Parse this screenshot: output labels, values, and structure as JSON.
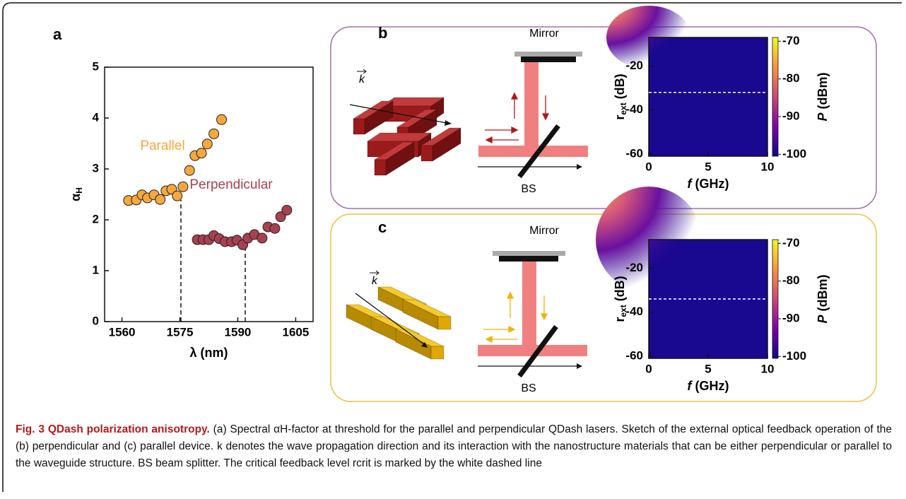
{
  "chart_data": [
    {
      "type": "scatter",
      "panel_label": "a",
      "xlabel": "λ (nm)",
      "ylabel": {
        "symbol": "α",
        "subscript": "H"
      },
      "xlim": [
        1555.5,
        1609.5
      ],
      "xticks": [
        1560,
        1575,
        1590,
        1605
      ],
      "ylim": [
        0,
        5
      ],
      "yticks": [
        0,
        1,
        2,
        3,
        4,
        5
      ],
      "series": [
        {
          "name": "Parallel",
          "color": "#f5a83c",
          "x": [
            1561.7,
            1563.7,
            1565.2,
            1566.6,
            1568.3,
            1569.9,
            1571.4,
            1572.9,
            1574.3,
            1575.8,
            1577.5,
            1578.9,
            1580.6,
            1582.1,
            1583.8,
            1585.8
          ],
          "values": [
            2.38,
            2.39,
            2.49,
            2.43,
            2.49,
            2.4,
            2.57,
            2.6,
            2.47,
            2.65,
            2.97,
            3.26,
            3.31,
            3.49,
            3.69,
            3.97
          ]
        },
        {
          "name": "Perpendicular",
          "color": "#a8414f",
          "x": [
            1579.5,
            1581.0,
            1582.5,
            1583.8,
            1585.2,
            1586.7,
            1588.4,
            1589.8,
            1591.3,
            1592.6,
            1594.3,
            1596.3,
            1597.8,
            1599.6,
            1601.1,
            1602.7
          ],
          "values": [
            1.61,
            1.61,
            1.61,
            1.69,
            1.63,
            1.57,
            1.57,
            1.6,
            1.51,
            1.64,
            1.71,
            1.64,
            1.86,
            1.83,
            2.06,
            2.19
          ]
        }
      ]
    },
    {
      "type": "heatmap",
      "panel_label": "b",
      "xlabel": {
        "symbol": "f",
        "unit": " (GHz)"
      },
      "ylabel": {
        "symbol": "r",
        "subscript": "ext",
        "unit": " (dB)"
      },
      "xlim": [
        0,
        10
      ],
      "xticks": [
        0,
        5,
        10
      ],
      "ylim": [
        -61,
        -7
      ],
      "yticks": [
        -20,
        -40,
        -60
      ],
      "colorbar": {
        "label": {
          "symbol": "P",
          "unit": " (dBm)"
        },
        "lim": [
          -100.5,
          -69
        ],
        "ticks": [
          -70,
          -80,
          -90,
          -100
        ]
      },
      "critical_level": -32
    },
    {
      "type": "heatmap",
      "panel_label": "c",
      "xlabel": {
        "symbol": "f",
        "unit": " (GHz)"
      },
      "ylabel": {
        "symbol": "r",
        "subscript": "ext",
        "unit": " (dB)"
      },
      "xlim": [
        0,
        10
      ],
      "xticks": [
        0,
        5,
        10
      ],
      "ylim": [
        -61,
        -7
      ],
      "yticks": [
        -20,
        -40,
        -60
      ],
      "colorbar": {
        "label": {
          "symbol": "P",
          "unit": " (dBm)"
        },
        "lim": [
          -100.5,
          -69
        ],
        "ticks": [
          -70,
          -80,
          -90,
          -100
        ]
      },
      "critical_level": -34
    }
  ],
  "diagrams": {
    "b": {
      "mirror": "Mirror",
      "splitter": "BS",
      "wavevector": "k"
    },
    "c": {
      "mirror": "Mirror",
      "splitter": "BS",
      "wavevector": "k"
    }
  },
  "caption": {
    "title": "Fig. 3 QDash polarization anisotropy.",
    "text": " (a) Spectral αH-factor at threshold for the parallel and perpendicular QDash lasers. Sketch of the external optical feedback operation of the (b) perpendicular and (c) parallel device. k denotes the wave propagation direction and its interaction with the nanostructure materials that can be either perpendicular or parallel to the waveguide structure. BS beam splitter. The critical feedback level rcrit is marked by the white dashed line"
  }
}
